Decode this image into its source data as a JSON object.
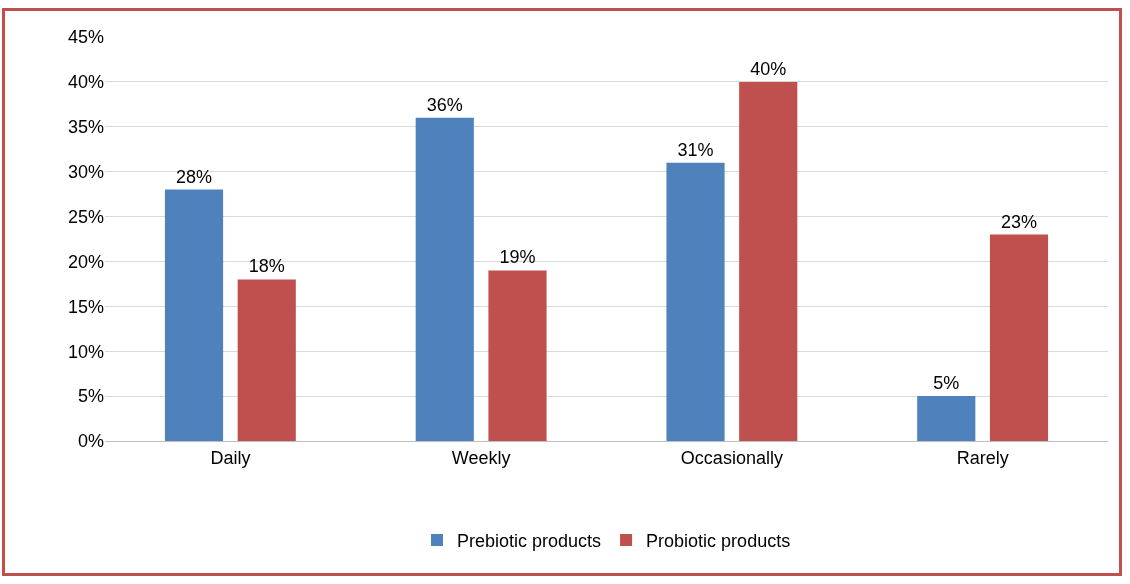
{
  "chart_data": {
    "type": "bar",
    "categories": [
      "Daily",
      "Weekly",
      "Occasionally",
      "Rarely"
    ],
    "series": [
      {
        "name": "Prebiotic products",
        "color": "#4f81bd",
        "values": [
          28,
          36,
          31,
          5
        ],
        "value_labels": [
          "28%",
          "36%",
          "31%",
          "5%"
        ]
      },
      {
        "name": "Probiotic products",
        "color": "#c0504d",
        "values": [
          18,
          19,
          40,
          23
        ],
        "value_labels": [
          "18%",
          "19%",
          "40%",
          "23%"
        ]
      }
    ],
    "ylim": [
      0,
      45
    ],
    "yticks": [
      {
        "value": 0,
        "label": "0%"
      },
      {
        "value": 5,
        "label": "5%"
      },
      {
        "value": 10,
        "label": "10%"
      },
      {
        "value": 15,
        "label": "15%"
      },
      {
        "value": 20,
        "label": "20%"
      },
      {
        "value": 25,
        "label": "25%"
      },
      {
        "value": 30,
        "label": "30%"
      },
      {
        "value": 35,
        "label": "35%"
      },
      {
        "value": 40,
        "label": "40%"
      },
      {
        "value": 45,
        "label": "45%"
      }
    ],
    "grid": "y",
    "legend": "bottom"
  }
}
